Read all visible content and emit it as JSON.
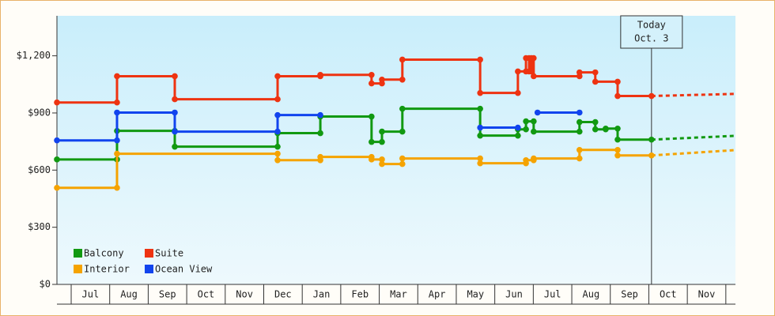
{
  "chart_data": {
    "type": "step-line",
    "xlim": [
      -0.37,
      17.25
    ],
    "xticks": [
      {
        "value": 0.5,
        "label": "Jul"
      },
      {
        "value": 1.5,
        "label": "Aug"
      },
      {
        "value": 2.5,
        "label": "Sep"
      },
      {
        "value": 3.5,
        "label": "Oct"
      },
      {
        "value": 4.5,
        "label": "Nov"
      },
      {
        "value": 5.5,
        "label": "Dec"
      },
      {
        "value": 6.5,
        "label": "Jan"
      },
      {
        "value": 7.5,
        "label": "Feb"
      },
      {
        "value": 8.5,
        "label": "Mar"
      },
      {
        "value": 9.5,
        "label": "Apr"
      },
      {
        "value": 10.5,
        "label": "May"
      },
      {
        "value": 11.5,
        "label": "Jun"
      },
      {
        "value": 12.5,
        "label": "Jul"
      },
      {
        "value": 13.5,
        "label": "Aug"
      },
      {
        "value": 14.5,
        "label": "Sep"
      },
      {
        "value": 15.5,
        "label": "Oct"
      },
      {
        "value": 16.5,
        "label": "Nov"
      }
    ],
    "ylim": [
      0,
      1410
    ],
    "yticks": [
      {
        "value": 0,
        "label": "$0"
      },
      {
        "value": 300,
        "label": "$300"
      },
      {
        "value": 600,
        "label": "$600"
      },
      {
        "value": 900,
        "label": "$900"
      },
      {
        "value": 1200,
        "label": "$1,200"
      }
    ],
    "legend": "lower left",
    "annotation": {
      "x": 15.07,
      "lines": [
        "Today",
        "Oct. 3"
      ]
    },
    "series": [
      {
        "name": "Balcony",
        "color": "#119911",
        "x": [
          -0.37,
          1.19,
          2.69,
          5.36,
          6.47,
          7.8,
          8.07,
          8.6,
          10.62,
          11.6,
          11.81,
          12.01,
          13.2,
          13.61,
          13.88,
          14.19,
          15.07
        ],
        "values": [
          656,
          806,
          723,
          794,
          881,
          748,
          802,
          922,
          781,
          814,
          856,
          802,
          852,
          814,
          818,
          760,
          760
        ],
        "forecast": {
          "x": [
            15.07,
            17.25
          ],
          "values": [
            760,
            780
          ]
        }
      },
      {
        "name": "Suite",
        "color": "#ee3311",
        "x": [
          -0.37,
          1.19,
          2.69,
          5.36,
          6.47,
          7.8,
          8.07,
          8.6,
          10.62,
          11.6,
          11.81,
          11.89,
          11.95,
          12.01,
          13.2,
          13.61,
          14.19,
          15.07
        ],
        "values": [
          955,
          1093,
          972,
          1093,
          1100,
          1055,
          1075,
          1180,
          1005,
          1118,
          1188,
          1118,
          1188,
          1093,
          1113,
          1064,
          989,
          989
        ],
        "forecast": {
          "x": [
            15.07,
            17.25
          ],
          "values": [
            989,
            1000
          ]
        }
      },
      {
        "name": "Interior",
        "color": "#f5a300",
        "x": [
          -0.37,
          1.19,
          5.36,
          6.47,
          7.8,
          8.07,
          8.6,
          10.62,
          11.81,
          12.01,
          13.2,
          14.19,
          15.07
        ],
        "values": [
          507,
          686,
          652,
          669,
          656,
          632,
          661,
          636,
          652,
          661,
          706,
          677,
          677
        ],
        "forecast": {
          "x": [
            15.07,
            17.25
          ],
          "values": [
            677,
            705
          ]
        }
      },
      {
        "name": "Ocean View",
        "color": "#1144ee",
        "x": [
          -0.37,
          1.19,
          2.69,
          5.36,
          6.47,
          null,
          10.62,
          11.6,
          null,
          12.11,
          13.2
        ],
        "values": [
          756,
          902,
          802,
          889,
          889,
          null,
          823,
          823,
          null,
          902,
          902
        ]
      }
    ]
  }
}
